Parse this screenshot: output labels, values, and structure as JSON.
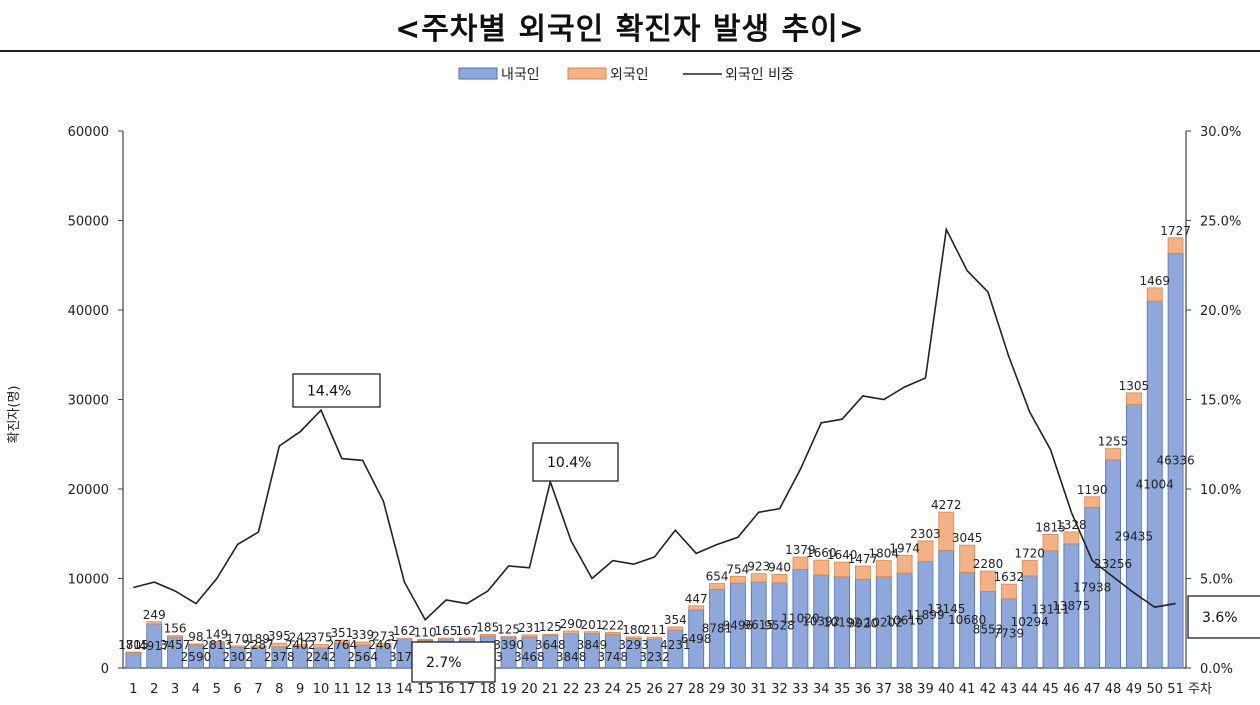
{
  "chart_data": {
    "type": "bar",
    "title": "<주차별 외국인 확진자 발생 추이>",
    "xlabel": "주차",
    "ylabel": "확진자(명)",
    "ylim": [
      0,
      60000
    ],
    "y2lim": [
      0,
      30
    ],
    "yticks": [
      "0",
      "10000",
      "20000",
      "30000",
      "40000",
      "50000",
      "60000"
    ],
    "y2ticks": [
      "0.0%",
      "5.0%",
      "10.0%",
      "15.0%",
      "20.0%",
      "25.0%",
      "30.0%"
    ],
    "legend": {
      "position": "top-center",
      "items": [
        "내국인",
        "외국인",
        "외국인 비중"
      ]
    },
    "categories": [
      "1",
      "2",
      "3",
      "4",
      "5",
      "6",
      "7",
      "8",
      "9",
      "10",
      "11",
      "12",
      "13",
      "14",
      "15",
      "16",
      "17",
      "18",
      "19",
      "20",
      "21",
      "22",
      "23",
      "24",
      "25",
      "26",
      "27",
      "28",
      "29",
      "30",
      "31",
      "32",
      "33",
      "34",
      "35",
      "36",
      "37",
      "38",
      "39",
      "40",
      "41",
      "42",
      "43",
      "44",
      "45",
      "46",
      "47",
      "48",
      "49",
      "50",
      "51"
    ],
    "series": [
      {
        "name": "내국인",
        "stack": true,
        "color": "#8fa8dc",
        "values": [
          1705,
          4917,
          3457,
          2590,
          2813,
          2302,
          2287,
          2378,
          2402,
          2242,
          2764,
          2564,
          2467,
          3174,
          3100,
          3175,
          3200,
          3573,
          3390,
          3468,
          3648,
          3848,
          3849,
          3748,
          3293,
          3232,
          4231,
          6498,
          8781,
          9496,
          9615,
          9528,
          11020,
          10392,
          10192,
          9920,
          10202,
          10616,
          11899,
          13145,
          10680,
          8553,
          7739,
          10294,
          13111,
          13875,
          17938,
          23256,
          29435,
          41004,
          46336
        ],
        "labels": [
          "1705",
          "4917",
          "3457",
          "2590",
          "2813",
          "2302",
          "2287",
          "2378",
          "2402",
          "2242",
          "2764",
          "2564",
          "2467",
          "3174",
          "",
          "",
          "",
          "3573",
          "3390",
          "3468",
          "3648",
          "3848",
          "3849",
          "3748",
          "3293",
          "3232",
          "4231",
          "6498",
          "8781",
          "9496",
          "9615",
          "9528",
          "11020",
          "10392",
          "10192",
          "9920",
          "10202",
          "10616",
          "11899",
          "13145",
          "10680",
          "8553",
          "7739",
          "10294",
          "13111",
          "13875",
          "17938",
          "23256",
          "29435",
          "41004",
          "46336"
        ]
      },
      {
        "name": "외국인",
        "stack": true,
        "color": "#f4b183",
        "values": [
          81,
          249,
          156,
          98,
          149,
          170,
          189,
          395,
          242,
          375,
          351,
          339,
          273,
          162,
          110,
          165,
          167,
          185,
          125,
          231,
          125,
          290,
          201,
          222,
          180,
          211,
          354,
          447,
          654,
          754,
          923,
          940,
          1379,
          1660,
          1640,
          1477,
          1804,
          1974,
          2303,
          4272,
          3045,
          2280,
          1632,
          1720,
          1815,
          1328,
          1190,
          1255,
          1305,
          1469,
          1727
        ],
        "labels": [
          "81",
          "249",
          "156",
          "98",
          "149",
          "170",
          "189",
          "395",
          "242",
          "375",
          "351",
          "339",
          "273",
          "162",
          "110",
          "165",
          "167",
          "185",
          "125",
          "231",
          "125",
          "290",
          "201",
          "222",
          "180",
          "211",
          "354",
          "447",
          "654",
          "754",
          "923",
          "940",
          "1379",
          "1660",
          "1640",
          "1477",
          "1804",
          "1974",
          "2303",
          "4272",
          "3045",
          "2280",
          "1632",
          "1720",
          "1815",
          "1328",
          "1190",
          "1255",
          "1305",
          "1469",
          "1727"
        ]
      },
      {
        "name": "외국인 비중",
        "axis": "right",
        "type": "line",
        "color": "#222222",
        "values": [
          4.5,
          4.8,
          4.3,
          3.6,
          5.0,
          6.9,
          7.6,
          12.4,
          13.2,
          14.4,
          11.7,
          11.6,
          9.3,
          4.8,
          2.7,
          3.8,
          3.6,
          4.3,
          5.7,
          5.6,
          10.4,
          7.1,
          5.0,
          6.0,
          5.8,
          6.2,
          7.7,
          6.4,
          6.9,
          7.3,
          8.7,
          8.9,
          11.1,
          13.7,
          13.9,
          15.2,
          15.0,
          15.7,
          16.2,
          24.5,
          22.2,
          21.0,
          17.4,
          14.3,
          12.2,
          8.7,
          6.0,
          5.1,
          4.2,
          3.4,
          3.6
        ]
      }
    ],
    "callouts": [
      {
        "week": "10",
        "text": "14.4%"
      },
      {
        "week": "21",
        "text": "10.4%"
      },
      {
        "week": "15",
        "text": "2.7%"
      },
      {
        "week": "51",
        "text": "3.6%"
      }
    ]
  }
}
